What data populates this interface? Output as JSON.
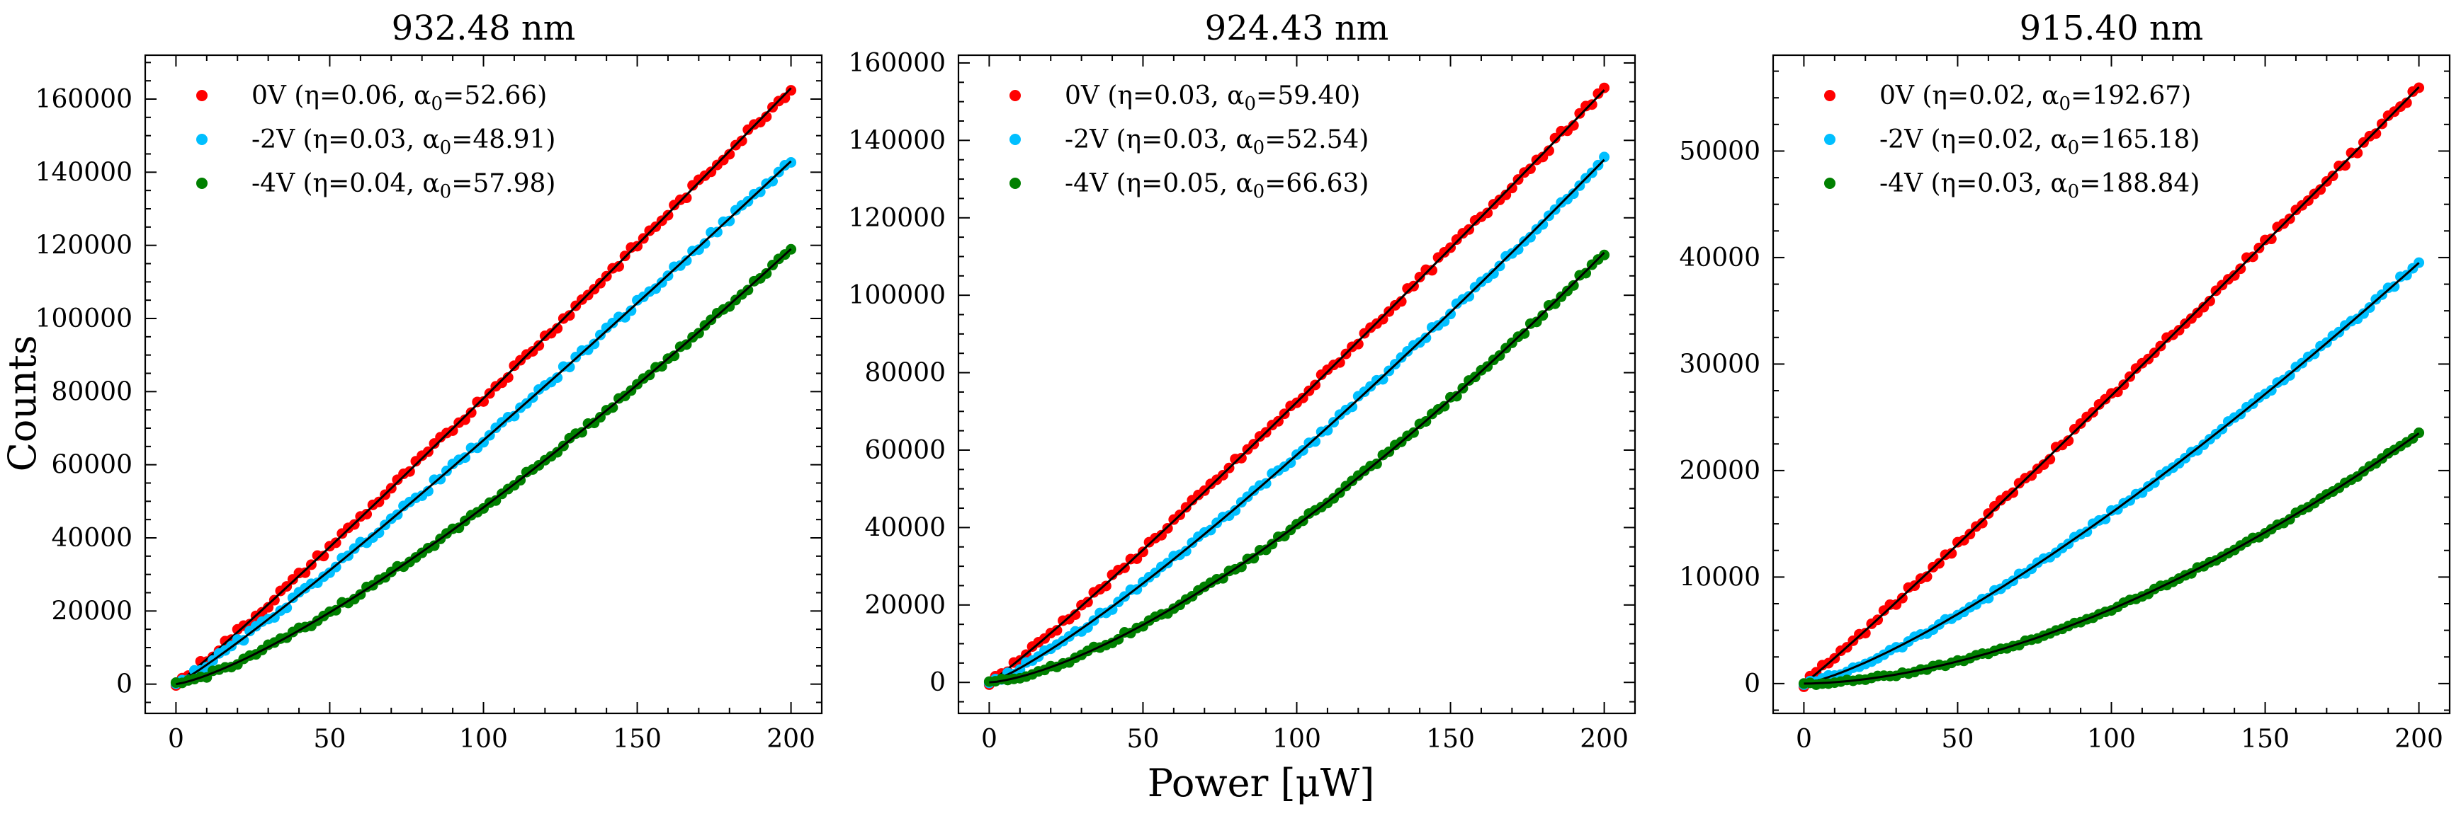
{
  "figure": {
    "xlabel": "Power [μW]",
    "ylabel": "Counts"
  },
  "chart_data": [
    {
      "type": "scatter",
      "title": "932.48 nm",
      "xlabel": "Power [μW]",
      "ylabel": "Counts",
      "xlim": [
        -10,
        210
      ],
      "ylim": [
        -8000,
        172000
      ],
      "xticks": [
        0,
        50,
        100,
        150,
        200
      ],
      "yticks": [
        0,
        20000,
        40000,
        60000,
        80000,
        100000,
        120000,
        140000,
        160000
      ],
      "legend": "top-left",
      "series": [
        {
          "name": "0V",
          "label": "0V (η=0.06, α0=52.66)",
          "color": "#ff0000",
          "x_range": [
            0,
            200
          ],
          "y_end": 163000,
          "exponent": 1.06
        },
        {
          "name": "-2V",
          "label": "-2V (η=0.03, α0=48.91)",
          "color": "#00bfff",
          "x_range": [
            0,
            200
          ],
          "y_end": 143000,
          "exponent": 1.1
        },
        {
          "name": "-4V",
          "label": "-4V (η=0.04, α0=57.98)",
          "color": "#008000",
          "x_range": [
            0,
            200
          ],
          "y_end": 119000,
          "exponent": 1.3
        }
      ]
    },
    {
      "type": "scatter",
      "title": "924.43 nm",
      "xlabel": "Power [μW]",
      "ylabel": "Counts",
      "xlim": [
        -10,
        210
      ],
      "ylim": [
        -8000,
        162000
      ],
      "xticks": [
        0,
        50,
        100,
        150,
        200
      ],
      "yticks": [
        0,
        20000,
        40000,
        60000,
        80000,
        100000,
        120000,
        140000,
        160000
      ],
      "legend": "top-left",
      "series": [
        {
          "name": "0V",
          "label": "0V (η=0.03, α0=59.40)",
          "color": "#ff0000",
          "x_range": [
            0,
            200
          ],
          "y_end": 153000,
          "exponent": 1.08
        },
        {
          "name": "-2V",
          "label": "-2V (η=0.03, α0=52.54)",
          "color": "#00bfff",
          "x_range": [
            0,
            200
          ],
          "y_end": 135000,
          "exponent": 1.2
        },
        {
          "name": "-4V",
          "label": "-4V (η=0.05, α0=66.63)",
          "color": "#008000",
          "x_range": [
            0,
            200
          ],
          "y_end": 111000,
          "exponent": 1.45
        }
      ]
    },
    {
      "type": "scatter",
      "title": "915.40 nm",
      "xlabel": "Power [μW]",
      "ylabel": "Counts",
      "xlim": [
        -10,
        210
      ],
      "ylim": [
        -2800,
        59000
      ],
      "xticks": [
        0,
        50,
        100,
        150,
        200
      ],
      "yticks": [
        0,
        10000,
        20000,
        30000,
        40000,
        50000
      ],
      "legend": "top-left",
      "series": [
        {
          "name": "0V",
          "label": "0V (η=0.02, α0=192.67)",
          "color": "#ff0000",
          "x_range": [
            0,
            200
          ],
          "y_end": 56000,
          "exponent": 1.05
        },
        {
          "name": "-2V",
          "label": "-2V (η=0.02, α0=165.18)",
          "color": "#00bfff",
          "x_range": [
            0,
            200
          ],
          "y_end": 39500,
          "exponent": 1.3
        },
        {
          "name": "-4V",
          "label": "-4V (η=0.03, α0=188.84)",
          "color": "#008000",
          "x_range": [
            0,
            200
          ],
          "y_end": 23500,
          "exponent": 1.75
        }
      ]
    }
  ]
}
